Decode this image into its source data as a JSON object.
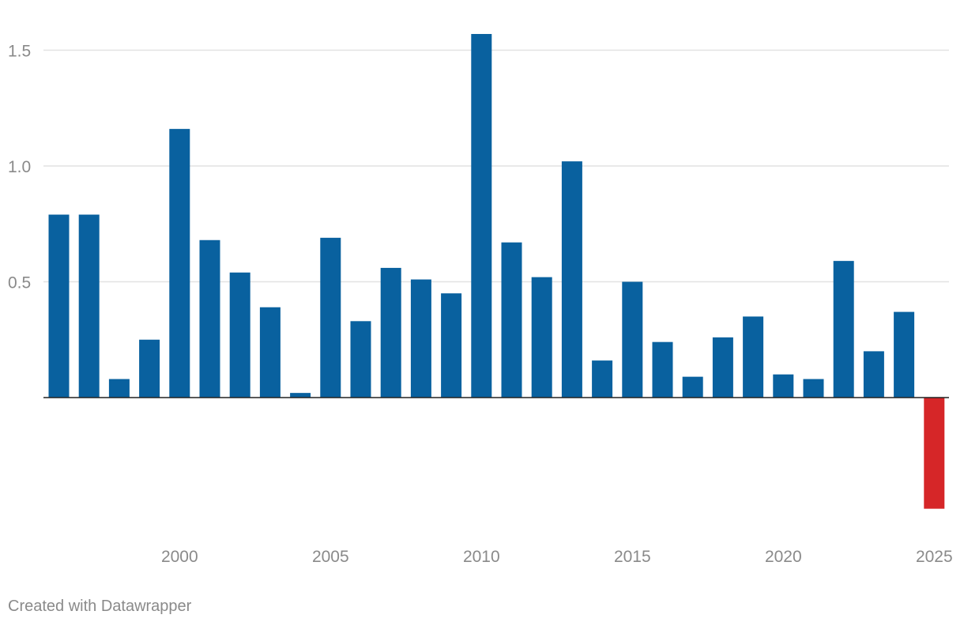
{
  "chart_data": {
    "type": "bar",
    "title": "",
    "xlabel": "",
    "ylabel": "",
    "categories": [
      1996,
      1997,
      1998,
      1999,
      2000,
      2001,
      2002,
      2003,
      2004,
      2005,
      2006,
      2007,
      2008,
      2009,
      2010,
      2011,
      2012,
      2013,
      2014,
      2015,
      2016,
      2017,
      2018,
      2019,
      2020,
      2021,
      2022,
      2023,
      2024,
      2025
    ],
    "values": [
      0.79,
      0.79,
      0.08,
      0.25,
      1.16,
      0.68,
      0.54,
      0.39,
      0.02,
      0.69,
      0.33,
      0.56,
      0.51,
      0.45,
      1.57,
      0.67,
      0.52,
      1.02,
      0.16,
      0.5,
      0.24,
      0.09,
      0.26,
      0.35,
      0.1,
      0.08,
      0.59,
      0.2,
      0.37,
      -0.48
    ],
    "ylim": [
      -0.48,
      1.6
    ],
    "y_ticks": [
      {
        "value": 0.5,
        "label": "0.5"
      },
      {
        "value": 1.0,
        "label": "1.0"
      },
      {
        "value": 1.5,
        "label": "1.5"
      }
    ],
    "x_ticks": [
      {
        "value": 2000,
        "label": "2000"
      },
      {
        "value": 2005,
        "label": "2005"
      },
      {
        "value": 2010,
        "label": "2010"
      },
      {
        "value": 2015,
        "label": "2015"
      },
      {
        "value": 2020,
        "label": "2020"
      },
      {
        "value": 2025,
        "label": "2025"
      }
    ],
    "grid": true,
    "legend": "none",
    "colors": {
      "positive": "#09619f",
      "negative": "#d62628",
      "grid": "#e2e2e2",
      "baseline": "#222222",
      "tick_text": "#8a8a8a"
    }
  },
  "footer": {
    "credit": "Created with Datawrapper"
  }
}
